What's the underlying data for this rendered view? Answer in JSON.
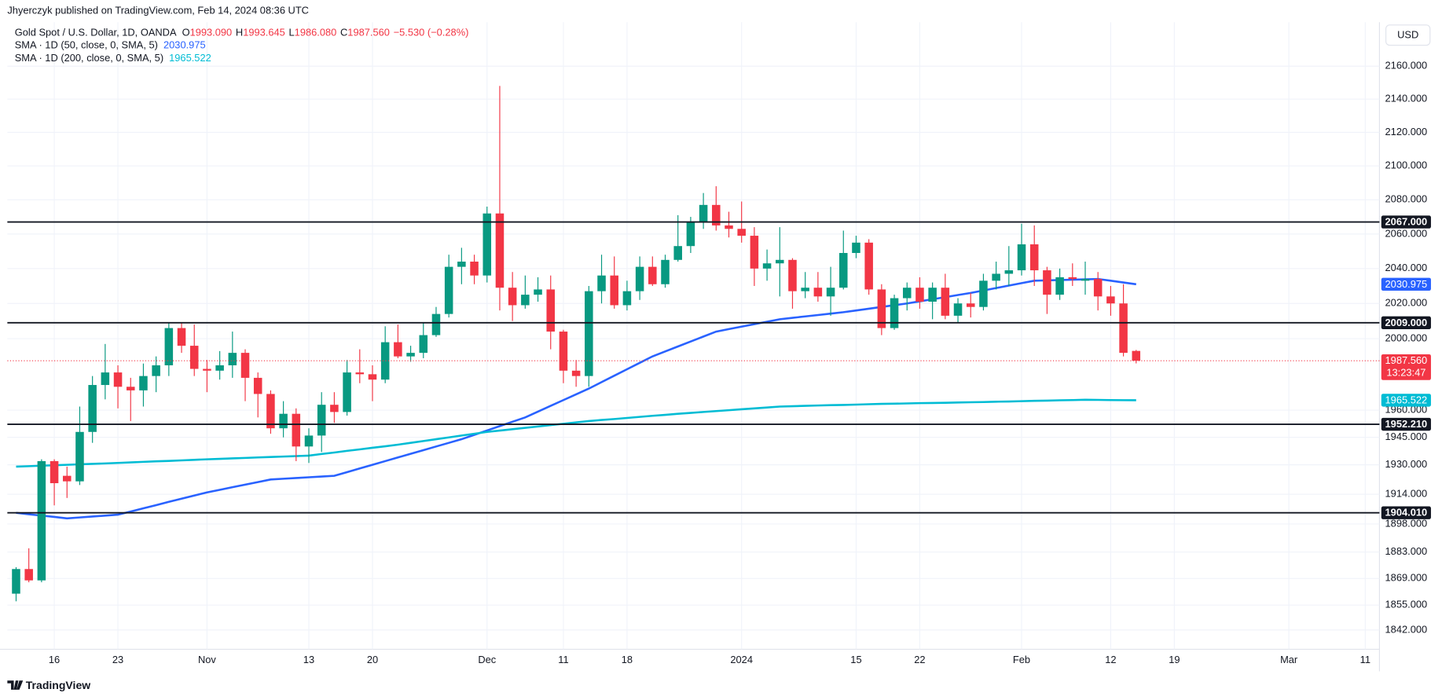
{
  "chart_data": {
    "type": "candlestick",
    "header": "Jhyerczyk published on TradingView.com, Feb 14, 2024 08:36 UTC",
    "title": "Gold Spot / U.S. Dollar, 1D, OANDA",
    "legend_ohlc": [
      {
        "key": "O",
        "value": "1993.090"
      },
      {
        "key": "H",
        "value": "1993.645"
      },
      {
        "key": "L",
        "value": "1986.080"
      },
      {
        "key": "C",
        "value": "1987.560"
      }
    ],
    "change": "−5.530 (−0.28%)",
    "currency": "USD",
    "brand": "TradingView",
    "up_color": "#089981",
    "down_color": "#f23645",
    "log_scale": true,
    "grid": true,
    "ylim": [
      1832,
      2187
    ],
    "yticks": [
      {
        "value": 1842,
        "label": "1842.000"
      },
      {
        "value": 1855,
        "label": "1855.000"
      },
      {
        "value": 1869,
        "label": "1869.000"
      },
      {
        "value": 1883,
        "label": "1883.000"
      },
      {
        "value": 1898,
        "label": "1898.000"
      },
      {
        "value": 1914,
        "label": "1914.000"
      },
      {
        "value": 1930,
        "label": "1930.000"
      },
      {
        "value": 1945,
        "label": "1945.000"
      },
      {
        "value": 1960,
        "label": "1960.000"
      },
      {
        "value": 2000,
        "label": "2000.000"
      },
      {
        "value": 2020,
        "label": "2020.000"
      },
      {
        "value": 2040,
        "label": "2040.000"
      },
      {
        "value": 2060,
        "label": "2060.000"
      },
      {
        "value": 2080,
        "label": "2080.000"
      },
      {
        "value": 2100,
        "label": "2100.000"
      },
      {
        "value": 2120,
        "label": "2120.000"
      },
      {
        "value": 2140,
        "label": "2140.000"
      },
      {
        "value": 2160,
        "label": "2160.000"
      }
    ],
    "categories": [
      null,
      null,
      null,
      "16",
      null,
      null,
      null,
      null,
      "23",
      null,
      null,
      null,
      null,
      null,
      null,
      "Nov",
      null,
      null,
      null,
      null,
      null,
      null,
      null,
      "13",
      null,
      null,
      null,
      null,
      "20",
      null,
      null,
      null,
      null,
      null,
      null,
      null,
      null,
      "Dec",
      null,
      null,
      null,
      null,
      null,
      "11",
      null,
      null,
      null,
      null,
      "18",
      null,
      null,
      null,
      null,
      null,
      null,
      null,
      null,
      "2024",
      null,
      null,
      null,
      null,
      null,
      null,
      null,
      null,
      "15",
      null,
      null,
      null,
      null,
      "22",
      null,
      null,
      null,
      null,
      null,
      null,
      null,
      "Feb",
      null,
      null,
      null,
      null,
      null,
      null,
      "12",
      null,
      null,
      null,
      null,
      "19",
      null,
      null,
      null,
      null,
      null,
      null,
      null,
      null,
      "Mar",
      null,
      null,
      null,
      null,
      null,
      "11"
    ],
    "open": [
      1861,
      1874,
      1868,
      1932,
      1924,
      1921,
      1948,
      1974,
      1981,
      1973,
      1971,
      1979,
      1985,
      2006,
      1996,
      1983,
      1982,
      1985,
      1992,
      1978,
      1969,
      1950,
      1958,
      1940,
      1946,
      1963,
      1959,
      1981,
      1980,
      1977,
      1998,
      1990,
      1992,
      2002,
      2014,
      2041,
      2044,
      2036,
      2072,
      2029,
      2019,
      2025,
      2028,
      2004,
      1982,
      1979,
      2027,
      2036,
      2019,
      2027,
      2041,
      2031,
      2045,
      2053,
      2067,
      2077,
      2065,
      2063,
      2059,
      2040,
      2043,
      2045,
      2027,
      2029,
      2024,
      2029,
      2049,
      2055,
      2028,
      2006,
      2023,
      2029,
      2021,
      2029,
      2013,
      2020,
      2018,
      2033,
      2037,
      2039,
      2054,
      2039,
      2025,
      2035,
      2033,
      2034,
      2024,
      2020,
      1993.09,
      null,
      null,
      null,
      null,
      null,
      null,
      null,
      null,
      null,
      null,
      null,
      null,
      null,
      null,
      null,
      null,
      null,
      null
    ],
    "high": [
      1875,
      1885,
      1933,
      1933,
      1929,
      1962,
      1979,
      1997,
      1985,
      1978,
      1986,
      1990,
      2009,
      2009,
      2008,
      1988,
      1993,
      2004,
      1994,
      1981,
      1971,
      1965,
      1961,
      1950,
      1970,
      1970,
      1988,
      1994,
      1985,
      2007,
      2008,
      1996,
      2009,
      2018,
      2048,
      2052,
      2048,
      2076,
      2148,
      2038,
      2036,
      2035,
      2036,
      2005,
      1988,
      2030,
      2048,
      2047,
      2033,
      2047,
      2047,
      2048,
      2071,
      2070,
      2084,
      2088,
      2073,
      2079,
      2064,
      2051,
      2064,
      2046,
      2038,
      2038,
      2041,
      2062,
      2059,
      2057,
      2031,
      2025,
      2032,
      2035,
      2032,
      2037,
      2023,
      2026,
      2037,
      2044,
      2053,
      2066,
      2065,
      2041,
      2040,
      2043,
      2044,
      2038,
      2030,
      2031,
      1993.645,
      null,
      null,
      null,
      null,
      null,
      null,
      null,
      null,
      null,
      null,
      null,
      null,
      null,
      null,
      null,
      null,
      null,
      null
    ],
    "low": [
      1857,
      1867,
      1867,
      1908,
      1912,
      1919,
      1942,
      1966,
      1961,
      1954,
      1962,
      1970,
      1979,
      1992,
      1979,
      1970,
      1977,
      1978,
      1965,
      1956,
      1947,
      1945,
      1932,
      1931,
      1937,
      1953,
      1957,
      1975,
      1965,
      1975,
      1989,
      1987,
      1989,
      2001,
      2012,
      2031,
      2031,
      2032,
      2016,
      2010,
      2017,
      2021,
      1994,
      1975,
      1973,
      1973,
      2020,
      2017,
      2016,
      2022,
      2030,
      2029,
      2044,
      2049,
      2063,
      2062,
      2058,
      2055,
      2030,
      2033,
      2024,
      2017,
      2023,
      2021,
      2013,
      2028,
      2046,
      2025,
      2002,
      2005,
      2016,
      2017,
      2011,
      2011,
      2009,
      2012,
      2016,
      2028,
      2030,
      2036,
      2030,
      2014,
      2022,
      2030,
      2025,
      2016,
      2013,
      1990,
      1986.08,
      null,
      null,
      null,
      null,
      null,
      null,
      null,
      null,
      null,
      null,
      null,
      null,
      null,
      null,
      null,
      null,
      null,
      null
    ],
    "close": [
      1874,
      1868,
      1932,
      1920,
      1921,
      1948,
      1974,
      1981,
      1973,
      1971,
      1979,
      1985,
      2006,
      1996,
      1983,
      1982,
      1985,
      1992,
      1978,
      1969,
      1950,
      1958,
      1940,
      1946,
      1963,
      1959,
      1981,
      1980,
      1977,
      1998,
      1990,
      1992,
      2002,
      2014,
      2041,
      2044,
      2036,
      2072,
      2029,
      2019,
      2025,
      2028,
      2004,
      1982,
      1979,
      2027,
      2036,
      2019,
      2027,
      2041,
      2031,
      2045,
      2053,
      2067,
      2077,
      2065,
      2063,
      2059,
      2040,
      2043,
      2045,
      2027,
      2029,
      2024,
      2029,
      2049,
      2055,
      2028,
      2006,
      2023,
      2029,
      2021,
      2029,
      2013,
      2020,
      2018,
      2033,
      2037,
      2039,
      2054,
      2039,
      2025,
      2035,
      2034,
      2034,
      2024,
      2020,
      1992,
      1987.56,
      null,
      null,
      null,
      null,
      null,
      null,
      null,
      null,
      null,
      null,
      null,
      null,
      null,
      null,
      null,
      null,
      null,
      null
    ],
    "series": [
      {
        "name": "SMA · 1D (50, close, 0, SMA, 5)",
        "color": "#2962ff",
        "tag": "2030.975",
        "values": [
          1904,
          1903.2,
          1902.5,
          1901.8,
          1901,
          1901.5,
          1902,
          1902.5,
          1903,
          1904.7,
          1906.4,
          1908.1,
          1909.9,
          1911.6,
          1913.3,
          1915,
          1916.4,
          1917.8,
          1919.2,
          1920.6,
          1922,
          1922.4,
          1922.8,
          1923.2,
          1923.6,
          1924,
          1926,
          1928,
          1930,
          1932,
          1934,
          1936,
          1938,
          1940,
          1942,
          1944,
          1946.4,
          1948.8,
          1951.2,
          1953.6,
          1956,
          1959.2,
          1962.4,
          1965.6,
          1968.8,
          1972,
          1975.6,
          1979.2,
          1982.8,
          1986.4,
          1990,
          1992.8,
          1995.6,
          1998.4,
          2001.2,
          2004,
          2005.4,
          2006.8,
          2008.2,
          2009.6,
          2011,
          2011.8,
          2012.6,
          2013.4,
          2014.2,
          2015,
          2016,
          2017,
          2018,
          2019,
          2020,
          2021.2,
          2022.4,
          2023.6,
          2024.8,
          2026,
          2027.4,
          2028.8,
          2030.2,
          2031.6,
          2033,
          2033.2,
          2033.4,
          2033.6,
          2033.8,
          2034,
          2033,
          2032,
          2030.975,
          null,
          null,
          null,
          null,
          null,
          null,
          null,
          null,
          null,
          null,
          null,
          null,
          null,
          null,
          null,
          null,
          null,
          null
        ]
      },
      {
        "name": "SMA · 1D (200, close, 0, SMA, 5)",
        "color": "#00bcd4",
        "tag": "1965.522",
        "values": [
          1929,
          1929.25,
          1929.5,
          1929.75,
          1930,
          1930.25,
          1930.5,
          1930.75,
          1931,
          1931.3,
          1931.6,
          1931.9,
          1932.1,
          1932.4,
          1932.7,
          1933,
          1933.25,
          1933.5,
          1933.75,
          1934,
          1934.25,
          1934.5,
          1934.75,
          1935,
          1935.9,
          1936.7,
          1937.6,
          1938.4,
          1939.3,
          1940.1,
          1941,
          1942,
          1943,
          1944,
          1945,
          1946,
          1947,
          1948,
          1948.75,
          1949.5,
          1950.25,
          1951,
          1951.75,
          1952.5,
          1953.25,
          1954,
          1954.6,
          1955.1,
          1955.7,
          1956.3,
          1956.9,
          1957.4,
          1958,
          1958.5,
          1959,
          1959.5,
          1960,
          1960.5,
          1961,
          1961.5,
          1962,
          1962.2,
          1962.4,
          1962.6,
          1962.8,
          1962.9,
          1963.1,
          1963.3,
          1963.5,
          1963.6,
          1963.75,
          1963.9,
          1964,
          1964.1,
          1964.25,
          1964.4,
          1964.5,
          1964.7,
          1964.8,
          1965,
          1965.2,
          1965.3,
          1965.5,
          1965.6,
          1965.8,
          1965.7,
          1965.6,
          1965.55,
          1965.522,
          null,
          null,
          null,
          null,
          null,
          null,
          null,
          null,
          null,
          null,
          null,
          null,
          null,
          null,
          null,
          null,
          null,
          null
        ]
      }
    ],
    "levels": [
      {
        "value": 2067,
        "label": "2067.000"
      },
      {
        "value": 2009,
        "label": "2009.000"
      },
      {
        "value": 1952.21,
        "label": "1952.210"
      },
      {
        "value": 1904.01,
        "label": "1904.010"
      }
    ],
    "last_price": {
      "value": 1987.56,
      "label": "1987.560",
      "countdown": "13:23:47",
      "color": "#f23645"
    }
  }
}
